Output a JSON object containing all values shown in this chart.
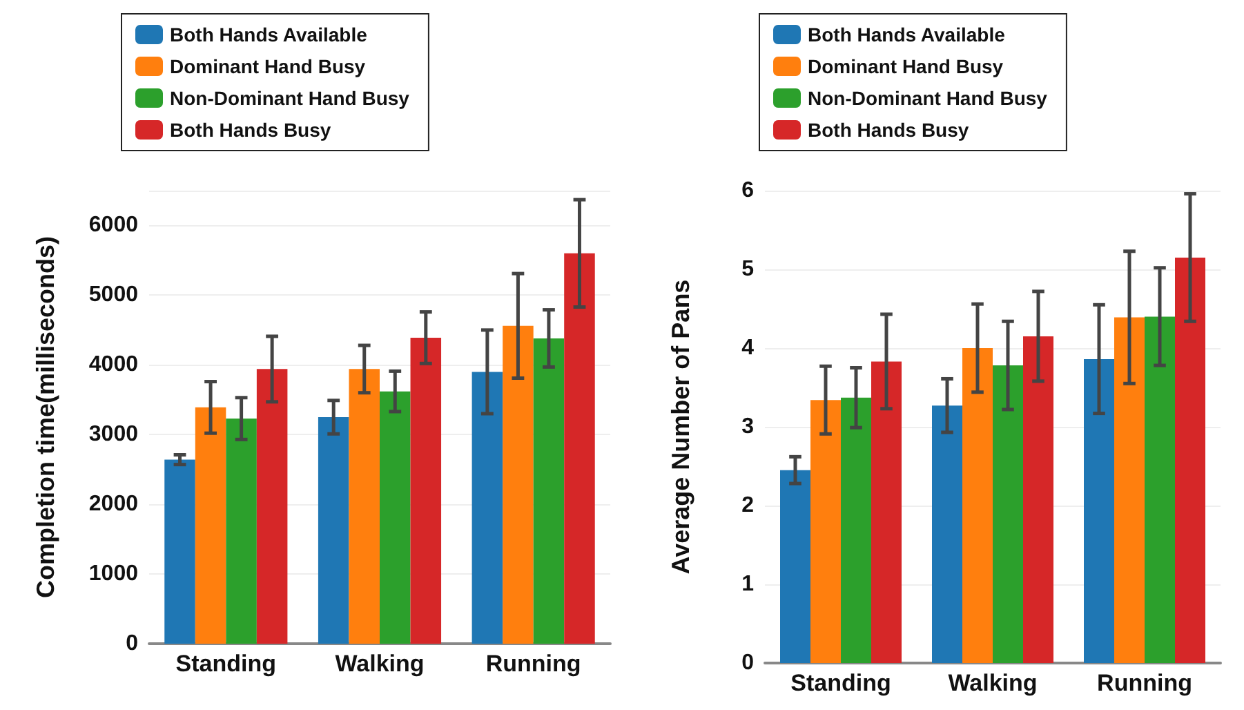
{
  "chart_data": [
    {
      "type": "bar",
      "categories": [
        "Standing",
        "Walking",
        "Running"
      ],
      "ylabel": "Completion time(milliseconds)",
      "ylim": [
        0,
        6500
      ],
      "yticks": [
        0,
        1000,
        2000,
        3000,
        4000,
        5000,
        6000,
        {
          "value": 6500,
          "label": null
        }
      ],
      "grid": "y",
      "legend": "top",
      "series": [
        {
          "name": "Both Hands Available",
          "color": "#1f77b4",
          "values": [
            2640,
            3250,
            3900
          ],
          "errors": [
            70,
            240,
            600
          ]
        },
        {
          "name": "Dominant Hand Busy",
          "color": "#ff7f0e",
          "values": [
            3390,
            3940,
            4560
          ],
          "errors": [
            370,
            340,
            750
          ]
        },
        {
          "name": "Non-Dominant Hand Busy",
          "color": "#2ca02c",
          "values": [
            3230,
            3620,
            4380
          ],
          "errors": [
            300,
            290,
            410
          ]
        },
        {
          "name": "Both Hands Busy",
          "color": "#d62728",
          "values": [
            3940,
            4390,
            5600
          ],
          "errors": [
            470,
            370,
            770
          ]
        }
      ]
    },
    {
      "type": "bar",
      "categories": [
        "Standing",
        "Walking",
        "Running"
      ],
      "ylabel": "Average Number of Pans",
      "ylim": [
        0,
        6
      ],
      "yticks": [
        0,
        1,
        2,
        3,
        4,
        5,
        6
      ],
      "grid": "y",
      "legend": "top",
      "series": [
        {
          "name": "Both Hands Available",
          "color": "#1f77b4",
          "values": [
            2.45,
            3.27,
            3.86
          ],
          "errors": [
            0.17,
            0.34,
            0.69
          ]
        },
        {
          "name": "Dominant Hand Busy",
          "color": "#ff7f0e",
          "values": [
            3.34,
            4.0,
            4.39
          ],
          "errors": [
            0.43,
            0.56,
            0.84
          ]
        },
        {
          "name": "Non-Dominant Hand Busy",
          "color": "#2ca02c",
          "values": [
            3.37,
            3.78,
            4.4
          ],
          "errors": [
            0.38,
            0.56,
            0.62
          ]
        },
        {
          "name": "Both Hands Busy",
          "color": "#d62728",
          "values": [
            3.83,
            4.15,
            5.15
          ],
          "errors": [
            0.6,
            0.57,
            0.81
          ]
        }
      ]
    }
  ]
}
